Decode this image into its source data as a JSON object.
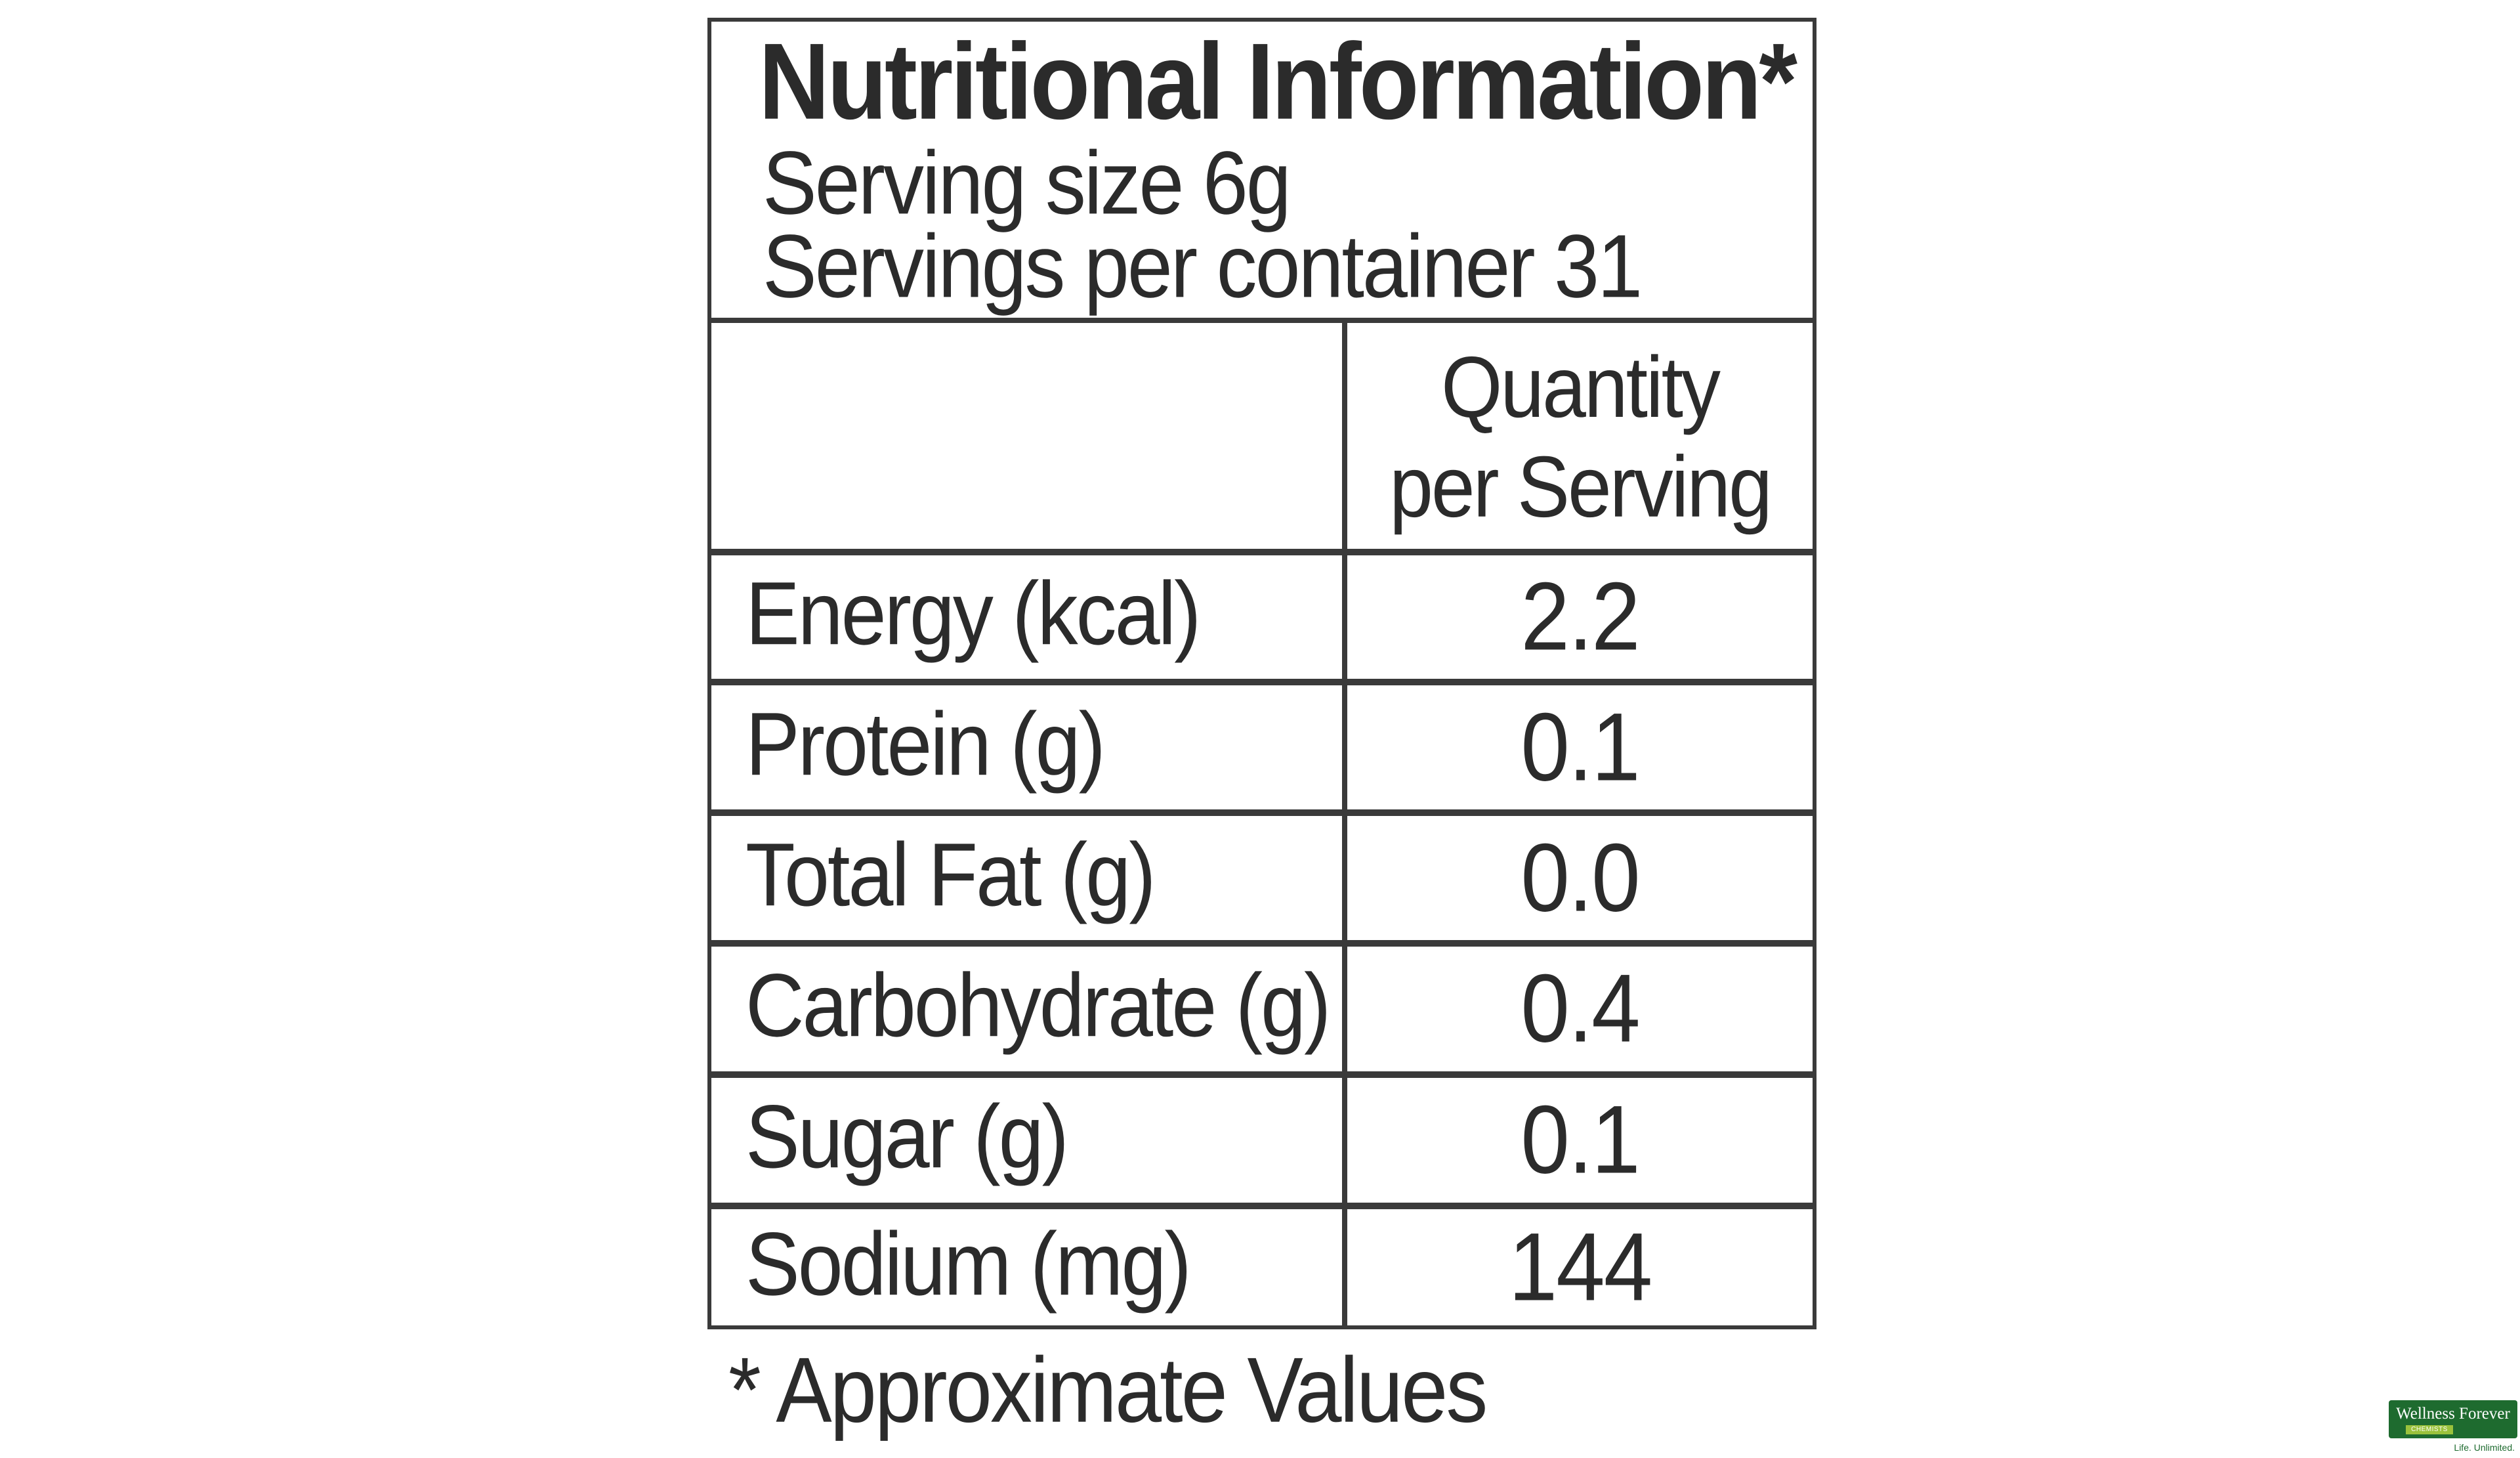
{
  "label": {
    "title": "Nutritional Information*",
    "serving_size": "Serving size 6g",
    "servings_per_container": "Servings per container 31",
    "column_header_line1": "Quantity",
    "column_header_line2": "per Serving",
    "rows": [
      {
        "nutrient": "Energy (kcal)",
        "value": "2.2"
      },
      {
        "nutrient": "Protein (g)",
        "value": "0.1"
      },
      {
        "nutrient": "Total Fat (g)",
        "value": "0.0"
      },
      {
        "nutrient": "Carbohydrate (g)",
        "value": "0.4"
      },
      {
        "nutrient": "Sugar (g)",
        "value": "0.1"
      },
      {
        "nutrient": "Sodium (mg)",
        "value": "144"
      }
    ],
    "footnote": "* Approximate Values"
  },
  "brand": {
    "name": "Wellness Forever",
    "sub": "CHEMISTS",
    "tagline": "Life. Unlimited.",
    "color": "#1e6b2f",
    "accent": "#9bc23c"
  }
}
